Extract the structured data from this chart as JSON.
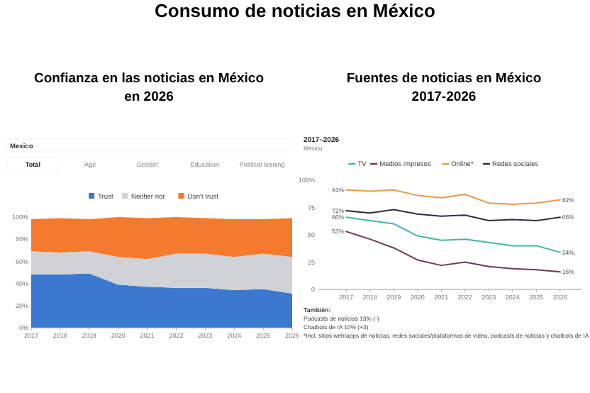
{
  "chart_data": [
    {
      "type": "other",
      "title": "Consumo de noticias en México"
    },
    {
      "type": "area",
      "title": "Confianza en las noticias en México en 2026",
      "annotations": [
        "Mexico",
        "Total",
        "Age",
        "Gender",
        "Education",
        "Political leaning"
      ],
      "stacked": true,
      "legend": "top",
      "x": [
        2017,
        2018,
        2019,
        2020,
        2021,
        2022,
        2023,
        2024,
        2025,
        2026
      ],
      "xlim": [
        2017,
        2026
      ],
      "xticks": [
        2017,
        2018,
        2019,
        2020,
        2021,
        2022,
        2023,
        2024,
        2025,
        2026
      ],
      "ylim": [
        0,
        100
      ],
      "yticks": [
        {
          "value": 0,
          "label": "0%"
        },
        {
          "value": 20,
          "label": "20%"
        },
        {
          "value": 40,
          "label": "40%"
        },
        {
          "value": 60,
          "label": "60%"
        },
        {
          "value": 80,
          "label": "80%"
        },
        {
          "value": 100,
          "label": "100%"
        }
      ],
      "series": [
        {
          "name": "Trust",
          "color": "#3b78cf",
          "values": [
            48,
            48,
            49,
            39,
            37,
            36,
            36,
            34,
            35,
            31
          ]
        },
        {
          "name": "Neither nor",
          "color": "#cfd2d6",
          "values": [
            21,
            20,
            20,
            25,
            25,
            31,
            31,
            30,
            32,
            33
          ]
        },
        {
          "name": "Don't trust",
          "color": "#f47a2e",
          "values": [
            29,
            31,
            29,
            36,
            37,
            33,
            32,
            34,
            31,
            35
          ]
        }
      ]
    },
    {
      "type": "line",
      "title": "Fuentes de noticias en México 2017-2026",
      "annotations": [
        "2017–2026",
        "México",
        "También:",
        "Podcasts de noticias 13% (-)",
        "Chatbots de IA 10% (+3)",
        "*Incl. sitios web/apps de noticias, redes sociales/plataformas de vídeo, podcasts de noticias y chatbots de IA"
      ],
      "legend": "top",
      "marker": "none",
      "x": [
        2017,
        2018,
        2019,
        2020,
        2021,
        2022,
        2023,
        2024,
        2025,
        2026
      ],
      "xlim": [
        2015.8,
        2026.9
      ],
      "xticks": [
        2017,
        2018,
        2019,
        2020,
        2021,
        2022,
        2023,
        2024,
        2025,
        2026
      ],
      "ylim": [
        0,
        100
      ],
      "yticks": [
        0,
        25,
        50,
        75,
        {
          "value": 100,
          "label": "100%"
        }
      ],
      "series": [
        {
          "name": "TV",
          "color": "#3fb8a4",
          "values": [
            66,
            63,
            60,
            49,
            45,
            46,
            43,
            40,
            40,
            34
          ],
          "value_labels": [
            "66%",
            null,
            null,
            null,
            null,
            null,
            null,
            null,
            null,
            "34%"
          ]
        },
        {
          "name": "Medios impresos",
          "color": "#6b3a55",
          "values": [
            53,
            46,
            38,
            27,
            22,
            25,
            21,
            19,
            18,
            16
          ],
          "value_labels": [
            "53%",
            null,
            null,
            null,
            null,
            null,
            null,
            null,
            null,
            "16%"
          ]
        },
        {
          "name": "Online*",
          "color": "#e59a52",
          "values": [
            91,
            90,
            91,
            86,
            84,
            87,
            79,
            78,
            79,
            82
          ],
          "value_labels": [
            "91%",
            null,
            null,
            null,
            null,
            null,
            null,
            null,
            null,
            "82%"
          ]
        },
        {
          "name": "Redes sociales",
          "color": "#2c2f45",
          "values": [
            72,
            70,
            73,
            69,
            67,
            68,
            63,
            64,
            63,
            66
          ],
          "value_labels": [
            "72%",
            null,
            null,
            null,
            null,
            null,
            null,
            null,
            null,
            "66%"
          ]
        }
      ]
    }
  ]
}
